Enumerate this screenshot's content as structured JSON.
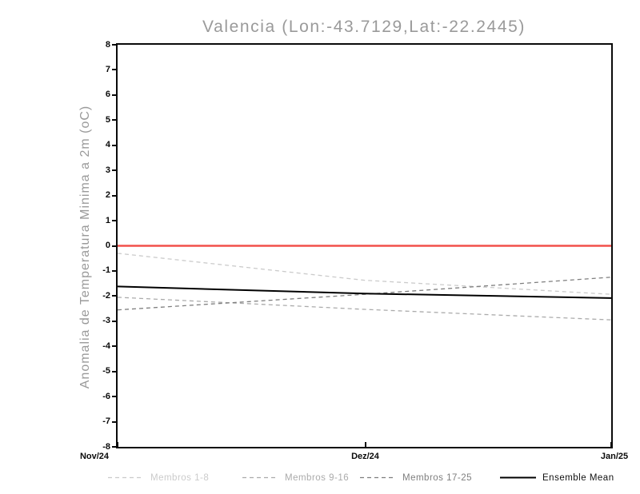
{
  "chart_data": {
    "type": "line",
    "title": "Valencia (Lon:-43.7129,Lat:-22.2445)",
    "ylabel": "Anomalia de Temperatura Minima a 2m (oC)",
    "xlabel": "",
    "x_categories": [
      "Nov/24",
      "Dez/24",
      "Jan/25"
    ],
    "ylim": [
      -8,
      8
    ],
    "y_ticks": [
      8,
      7,
      6,
      5,
      4,
      3,
      2,
      1,
      0,
      -1,
      -2,
      -3,
      -4,
      -5,
      -6,
      -7,
      -8
    ],
    "grid": false,
    "legend_position": "bottom",
    "axis_color": "#0a0a0a",
    "title_color": "#9a9a9a",
    "zero_line": {
      "value": 0,
      "color": "#f2504a"
    },
    "series": [
      {
        "name": "Membros 1-8",
        "style": "dashed",
        "color": "#cbcbcb",
        "values": [
          -0.3,
          -1.37,
          -1.93
        ]
      },
      {
        "name": "Membros 9-16",
        "style": "dashed",
        "color": "#ababab",
        "values": [
          -2.05,
          -2.53,
          -2.95
        ]
      },
      {
        "name": "Membros 17-25",
        "style": "dashed",
        "color": "#7e7e7e",
        "values": [
          -2.55,
          -1.93,
          -1.25
        ]
      },
      {
        "name": "Ensemble Mean",
        "style": "solid",
        "color": "#000000",
        "values": [
          -1.62,
          -1.9,
          -2.08
        ]
      }
    ]
  }
}
